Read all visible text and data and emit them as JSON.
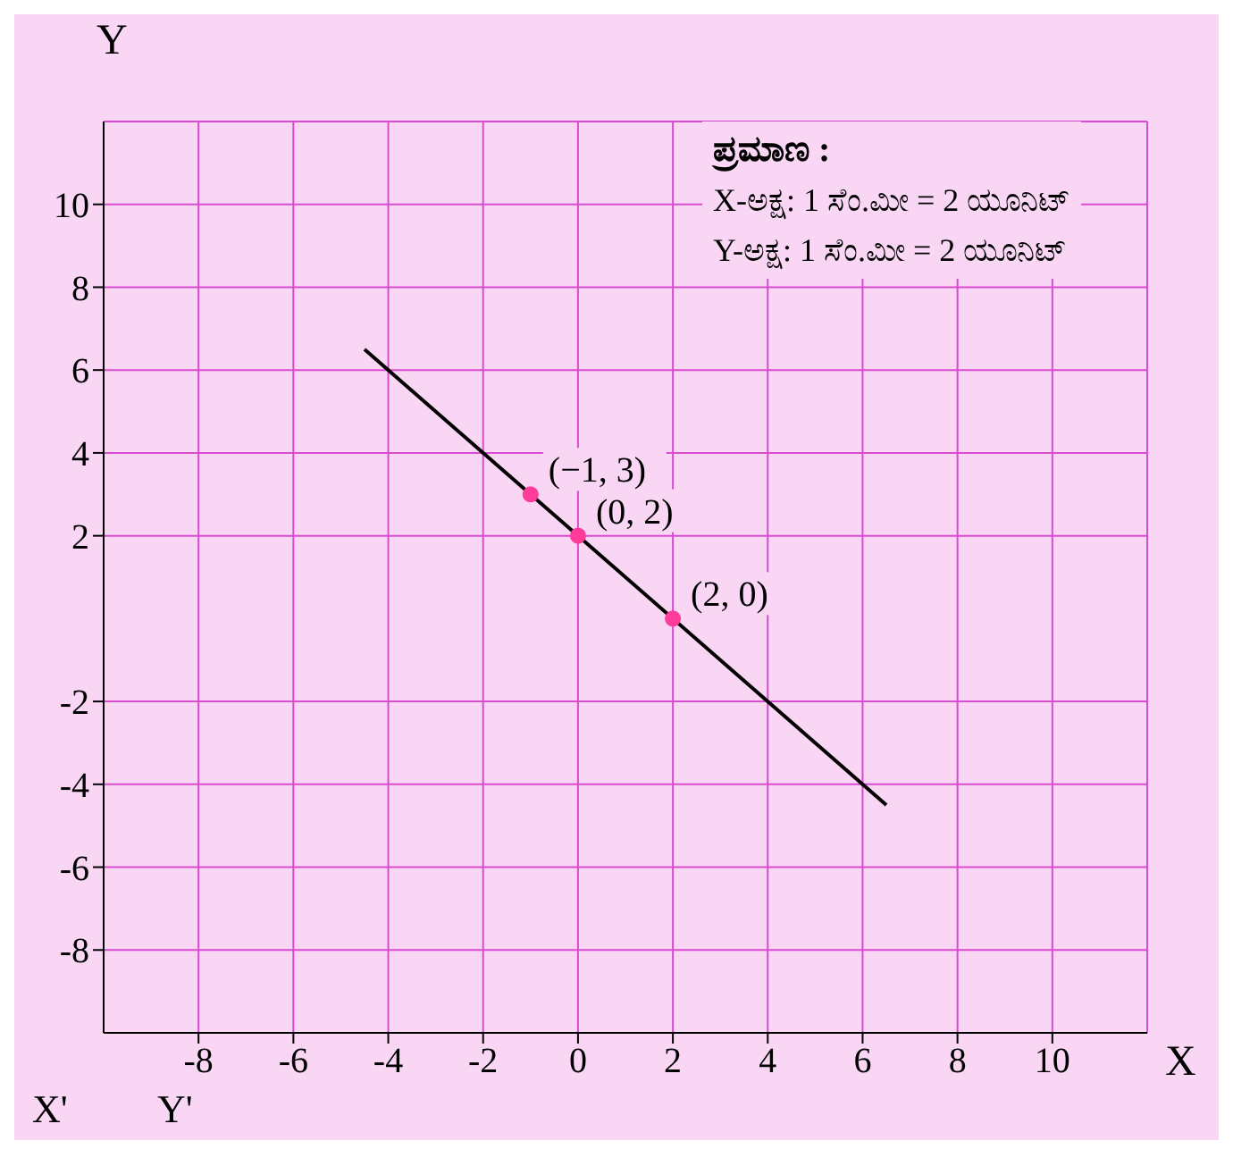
{
  "chart_data": {
    "type": "line",
    "xlabel": "X",
    "ylabel": "Y",
    "annotations": [
      "ಪ್ರಮಾಣ :",
      "X-ಅಕ್ಷ: 1 ಸೆಂ.ಮೀ = 2 ಯೂನಿಟ್",
      "Y-ಅಕ್ಷ: 1 ಸೆಂ.ಮೀ = 2 ಯೂನಿಟ್",
      "X'",
      "Y'"
    ],
    "xlim": [
      -10,
      12
    ],
    "xticks": [
      -8,
      -6,
      -4,
      -2,
      0,
      2,
      4,
      6,
      8,
      10
    ],
    "ylim": [
      -10,
      12
    ],
    "yticks": [
      -8,
      -6,
      -4,
      -2,
      2,
      4,
      6,
      8,
      10
    ],
    "grid": true,
    "series": [
      {
        "color": "#000000",
        "x": [
          -4.5,
          6.5
        ],
        "values": [
          6.5,
          -4.5
        ]
      },
      {
        "type": "scatter",
        "color": "#ff3c9a",
        "x": [
          -1,
          0,
          2
        ],
        "values": [
          3,
          2,
          0
        ],
        "value_labels": [
          "(−1, 3)",
          "(0, 2)",
          "(2, 0)"
        ]
      }
    ]
  }
}
